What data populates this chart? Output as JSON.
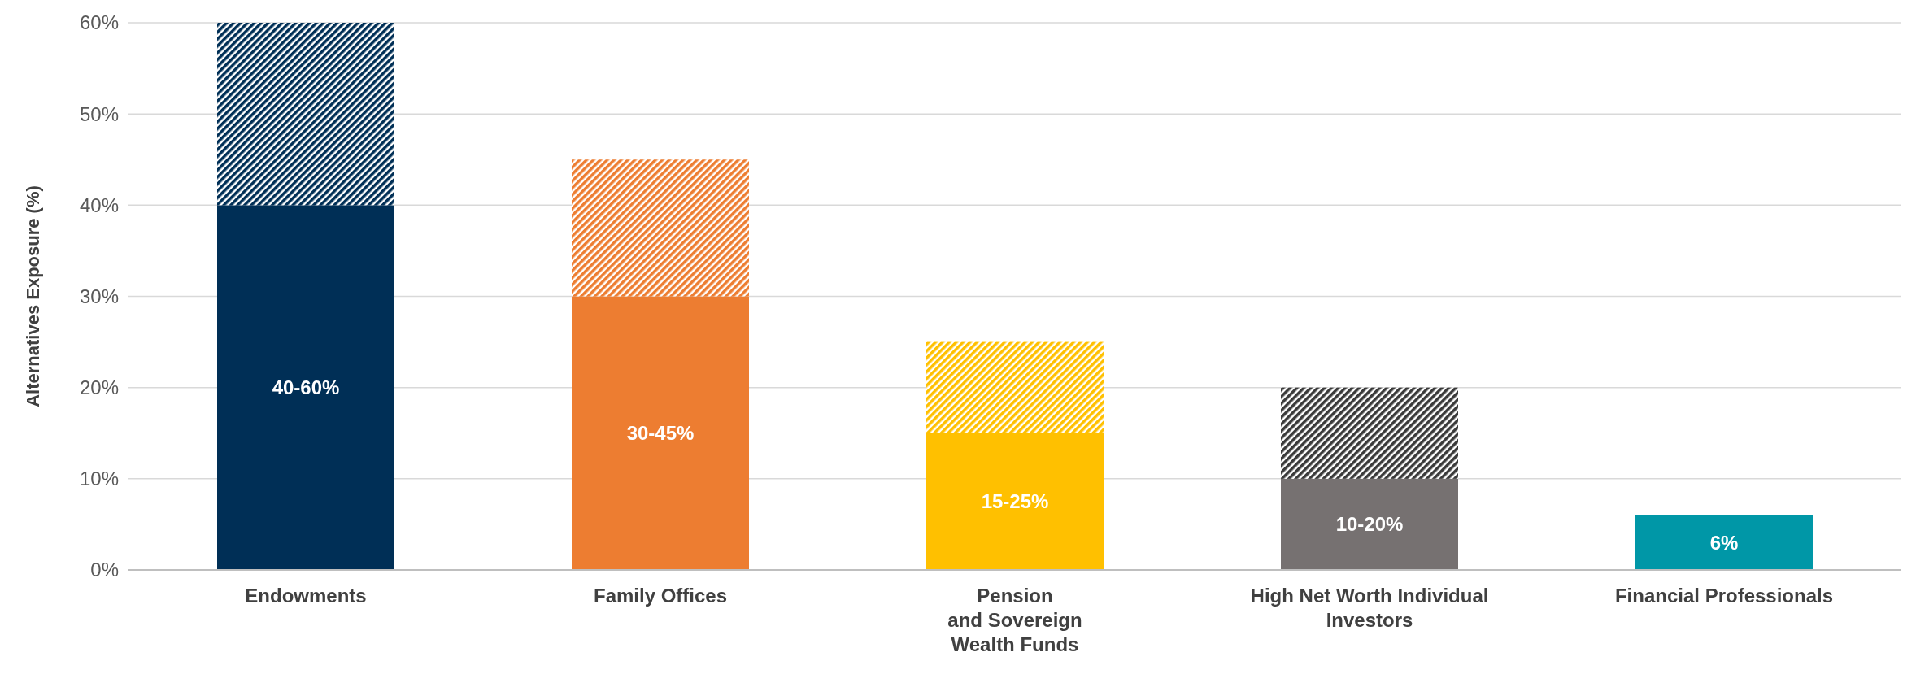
{
  "chart_data": {
    "type": "bar",
    "stacked": true,
    "ylabel": "Alternatives Exposure (%)",
    "categories": [
      "Endowments",
      "Family Offices",
      "Pension\nand Sovereign\nWealth Funds",
      "High Net Worth Individual\nInvestors",
      "Financial Professionals"
    ],
    "series": [
      {
        "colors": [
          "#002f56",
          "#ed7d31",
          "#ffc000",
          "#767171",
          "#0097a7"
        ],
        "values": [
          40,
          30,
          15,
          10,
          6
        ],
        "value_labels": [
          "40-60%",
          "30-45%",
          "15-25%",
          "10-20%",
          "6%"
        ]
      },
      {
        "colors": [
          "#002f56",
          "#ed7d31",
          "#ffc000",
          "#3a3a3a",
          "#0097a7"
        ],
        "values": [
          20,
          15,
          10,
          10,
          null
        ]
      }
    ],
    "ylim": [
      0,
      60
    ],
    "yticks": [
      {
        "value": 0,
        "label": "0%"
      },
      {
        "value": 10,
        "label": "10%"
      },
      {
        "value": 20,
        "label": "20%"
      },
      {
        "value": 30,
        "label": "30%"
      },
      {
        "value": 40,
        "label": "40%"
      },
      {
        "value": 50,
        "label": "50%"
      },
      {
        "value": 60,
        "label": "60%"
      }
    ],
    "grid": "y"
  }
}
